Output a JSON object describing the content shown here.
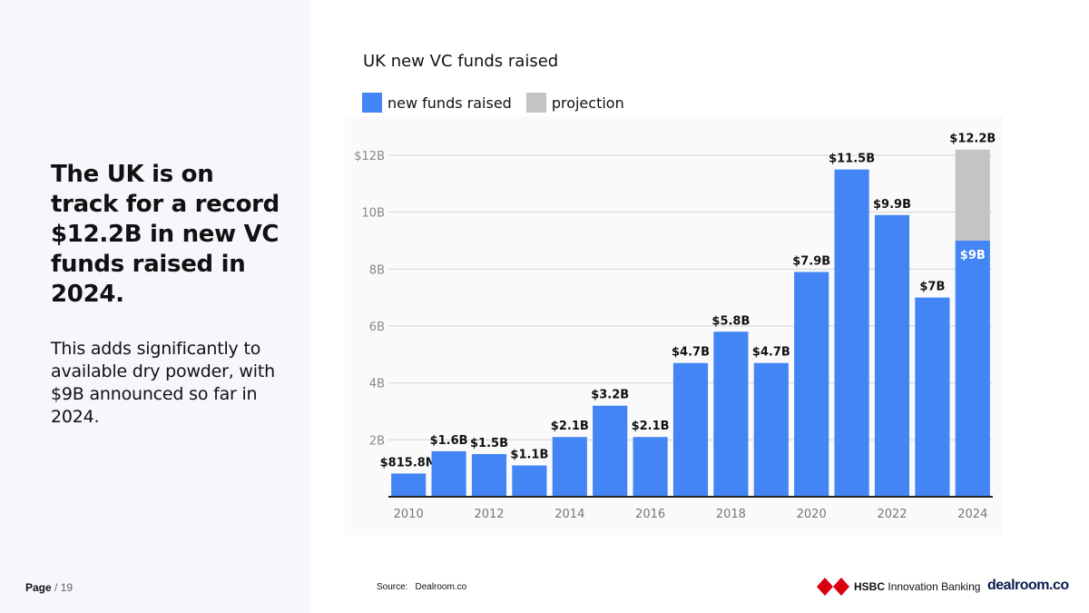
{
  "headline": "The UK is on track for a record $12.2B in new VC funds raised in 2024.",
  "body": "This adds significantly to available dry powder, with $9B announced so far in 2024.",
  "page": {
    "label": "Page",
    "total": "/ 19"
  },
  "source": {
    "label": "Source:",
    "value": "Dealroom.co"
  },
  "logos": {
    "hsbc_bold": "HSBC",
    "hsbc_rest": "Innovation Banking",
    "dealroom": "dealroom.co"
  },
  "colors": {
    "funds": "#4385f5",
    "projection": "#c4c4c4",
    "axis": "#222222",
    "grid": "#d4d4d4"
  },
  "chart_data": {
    "type": "bar",
    "title": "UK new VC funds raised",
    "legend": [
      {
        "name": "new funds raised",
        "color": "#4385f5"
      },
      {
        "name": "projection",
        "color": "#c4c4c4"
      }
    ],
    "legend_position": "top-left",
    "grid": true,
    "ylim": [
      0,
      12
    ],
    "yticks": [
      {
        "value": 2,
        "label": "2B"
      },
      {
        "value": 4,
        "label": "4B"
      },
      {
        "value": 6,
        "label": "6B"
      },
      {
        "value": 8,
        "label": "8B"
      },
      {
        "value": 10,
        "label": "10B"
      },
      {
        "value": 12,
        "label": "$12B"
      }
    ],
    "xticks": [
      "2010",
      "2012",
      "2014",
      "2016",
      "2018",
      "2020",
      "2022",
      "2024"
    ],
    "categories": [
      "2010",
      "2011",
      "2012",
      "2013",
      "2014",
      "2015",
      "2016",
      "2017",
      "2018",
      "2019",
      "2020",
      "2021",
      "2022",
      "2023",
      "2024"
    ],
    "series": [
      {
        "name": "new funds raised",
        "values": [
          0.8158,
          1.6,
          1.5,
          1.1,
          2.1,
          3.2,
          2.1,
          4.7,
          5.8,
          4.7,
          7.9,
          11.5,
          9.9,
          7.0,
          9.0
        ],
        "labels": [
          "$815.8M",
          "$1.6B",
          "$1.5B",
          "$1.1B",
          "$2.1B",
          "$3.2B",
          "$2.1B",
          "$4.7B",
          "$5.8B",
          "$4.7B",
          "$7.9B",
          "$11.5B",
          "$9.9B",
          "$7B",
          "$9B"
        ]
      },
      {
        "name": "projection",
        "values": [
          0,
          0,
          0,
          0,
          0,
          0,
          0,
          0,
          0,
          0,
          0,
          0,
          0,
          0,
          3.2
        ],
        "labels": [
          "",
          "",
          "",
          "",
          "",
          "",
          "",
          "",
          "",
          "",
          "",
          "",
          "",
          "",
          "$12.2B"
        ]
      }
    ]
  }
}
